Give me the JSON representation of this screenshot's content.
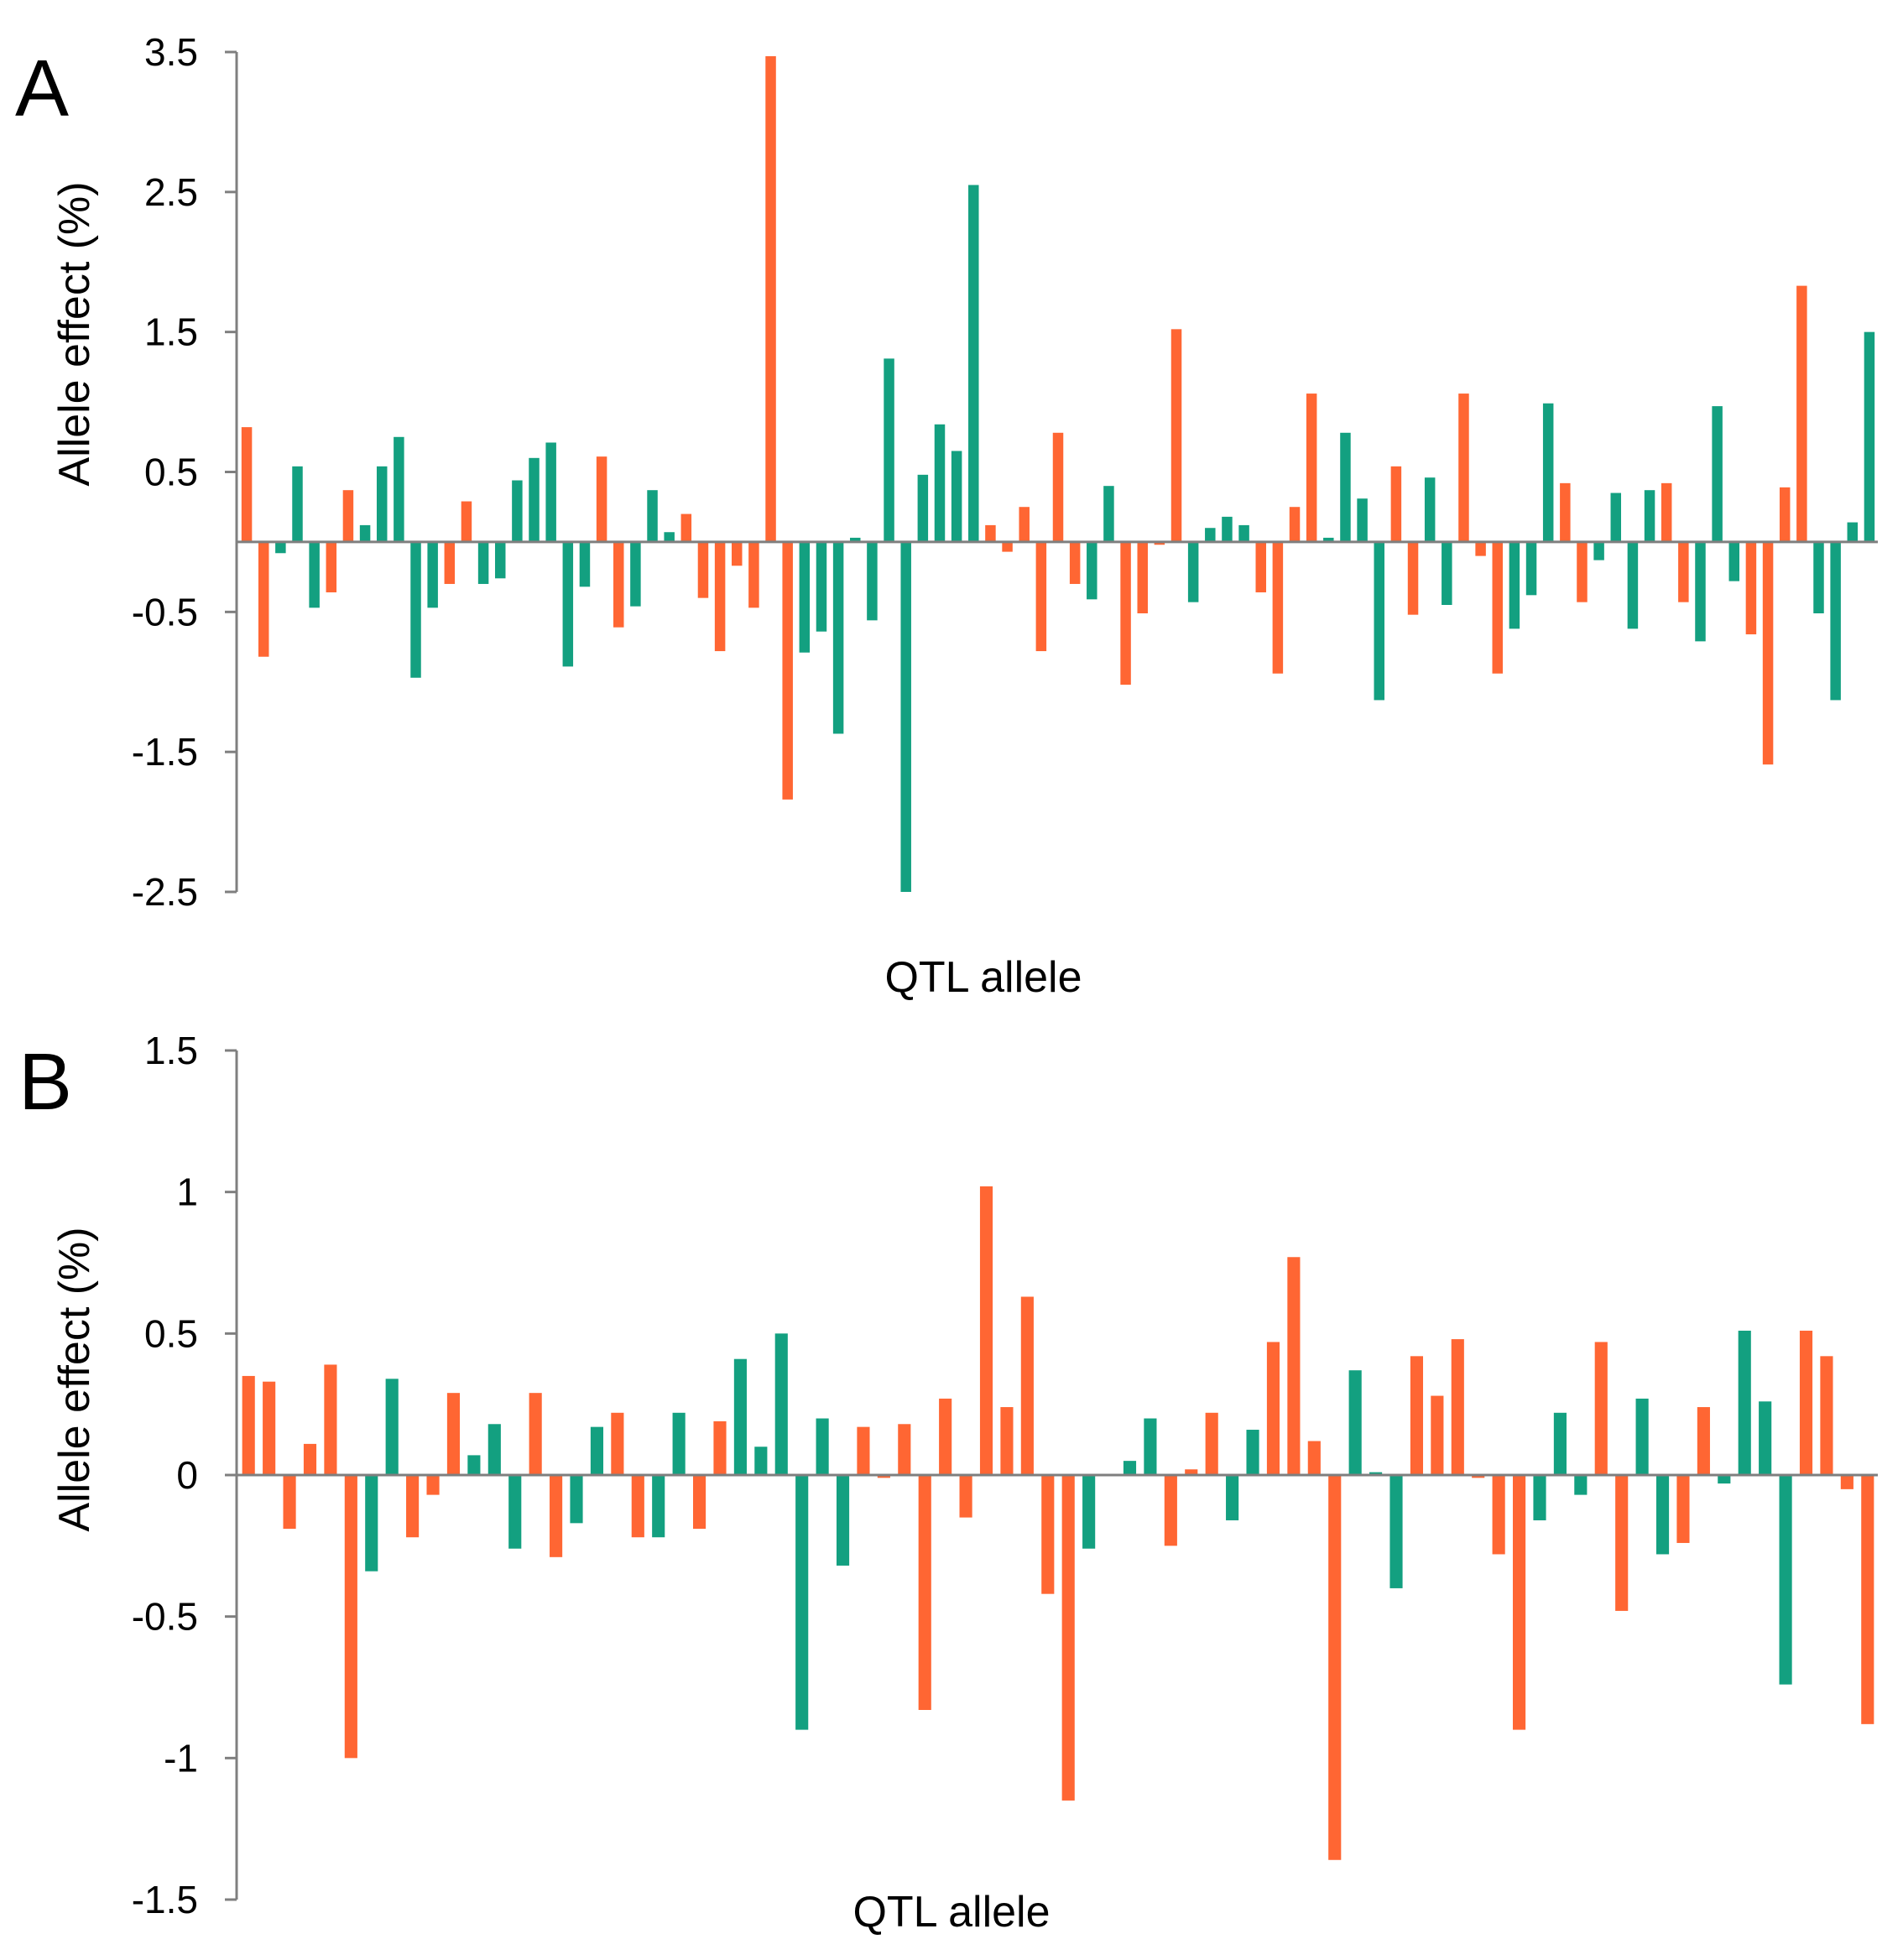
{
  "colors": {
    "orange": "#ff6633",
    "teal": "#13a080",
    "axis": "#7f7f7f"
  },
  "chart_data": [
    {
      "type": "bar",
      "panel": "A",
      "xlabel": "QTL allele",
      "ylabel": "Allele effect (%)",
      "ylim": [
        -2.5,
        3.5
      ],
      "yticks": [
        "3.5",
        "2.5",
        "1.5",
        "0.5",
        "-0.5",
        "-1.5",
        "-2.5"
      ],
      "ytick_values": [
        3.5,
        2.5,
        1.5,
        0.5,
        -0.5,
        -1.5,
        -2.5
      ],
      "grid": false,
      "values": [
        0.82,
        -0.82,
        -0.08,
        0.54,
        -0.47,
        -0.36,
        0.37,
        0.12,
        0.54,
        0.75,
        -0.97,
        -0.47,
        -0.3,
        0.29,
        -0.3,
        -0.26,
        0.44,
        0.6,
        0.71,
        -0.89,
        -0.32,
        0.61,
        -0.61,
        -0.46,
        0.37,
        0.07,
        0.2,
        -0.4,
        -0.78,
        -0.17,
        -0.47,
        3.47,
        -1.84,
        -0.79,
        -0.64,
        -1.37,
        0.03,
        -0.56,
        1.31,
        -2.5,
        0.48,
        0.84,
        0.65,
        2.55,
        0.12,
        -0.07,
        0.25,
        -0.78,
        0.78,
        -0.3,
        -0.41,
        0.4,
        -1.02,
        -0.51,
        -0.02,
        1.52,
        -0.43,
        0.1,
        0.18,
        0.12,
        -0.36,
        -0.94,
        0.25,
        1.06,
        0.03,
        0.78,
        0.31,
        -1.13,
        0.54,
        -0.52,
        0.46,
        -0.45,
        1.06,
        -0.1,
        -0.94,
        -0.62,
        -0.38,
        0.99,
        0.42,
        -0.43,
        -0.13,
        0.35,
        -0.62,
        0.37,
        0.42,
        -0.43,
        -0.71,
        0.97,
        -0.28,
        -0.66,
        -1.59,
        0.39,
        1.83,
        -0.51,
        -1.13,
        0.14,
        1.5
      ],
      "colors": [
        "o",
        "o",
        "t",
        "t",
        "t",
        "o",
        "o",
        "t",
        "t",
        "t",
        "t",
        "t",
        "o",
        "o",
        "t",
        "t",
        "t",
        "t",
        "t",
        "t",
        "t",
        "o",
        "o",
        "t",
        "t",
        "t",
        "o",
        "o",
        "o",
        "o",
        "o",
        "o",
        "o",
        "t",
        "t",
        "t",
        "t",
        "t",
        "t",
        "t",
        "t",
        "t",
        "t",
        "t",
        "o",
        "o",
        "o",
        "o",
        "o",
        "o",
        "t",
        "t",
        "o",
        "o",
        "o",
        "o",
        "t",
        "t",
        "t",
        "t",
        "o",
        "o",
        "o",
        "o",
        "t",
        "t",
        "t",
        "t",
        "o",
        "o",
        "t",
        "t",
        "o",
        "o",
        "o",
        "t",
        "t",
        "t",
        "o",
        "o",
        "t",
        "t",
        "t",
        "t",
        "o",
        "o",
        "t",
        "t",
        "t",
        "o",
        "o",
        "o",
        "o",
        "t",
        "t",
        "t",
        "t"
      ]
    },
    {
      "type": "bar",
      "panel": "B",
      "xlabel": "QTL allele",
      "ylabel": "Allele effect (%)",
      "ylim": [
        -1.5,
        1.5
      ],
      "yticks": [
        "1.5",
        "1",
        "0.5",
        "0",
        "-0.5",
        "-1",
        "-1.5"
      ],
      "ytick_values": [
        1.5,
        1,
        0.5,
        0,
        -0.5,
        -1,
        -1.5
      ],
      "grid": false,
      "values": [
        0.35,
        0.33,
        -0.19,
        0.11,
        0.39,
        -1.0,
        -0.34,
        0.34,
        -0.22,
        -0.07,
        0.29,
        0.07,
        0.18,
        -0.26,
        0.29,
        -0.29,
        -0.17,
        0.17,
        0.22,
        -0.22,
        -0.22,
        0.22,
        -0.19,
        0.19,
        0.41,
        0.1,
        0.5,
        -0.9,
        0.2,
        -0.32,
        0.17,
        -0.01,
        0.18,
        -0.83,
        0.27,
        -0.15,
        1.02,
        0.24,
        0.63,
        -0.42,
        -1.15,
        -0.26,
        0.0,
        0.05,
        0.2,
        -0.25,
        0.02,
        0.22,
        -0.16,
        0.16,
        0.47,
        0.77,
        0.12,
        -1.36,
        0.37,
        0.01,
        -0.4,
        0.42,
        0.28,
        0.48,
        -0.01,
        -0.28,
        -0.9,
        -0.16,
        0.22,
        -0.07,
        0.47,
        -0.48,
        0.27,
        -0.28,
        -0.24,
        0.24,
        -0.03,
        0.51,
        0.26,
        -0.74,
        0.51,
        0.42,
        -0.05,
        -0.88
      ],
      "colors": [
        "o",
        "o",
        "o",
        "o",
        "o",
        "o",
        "t",
        "t",
        "o",
        "o",
        "o",
        "t",
        "t",
        "t",
        "o",
        "o",
        "t",
        "t",
        "o",
        "o",
        "t",
        "t",
        "o",
        "o",
        "t",
        "t",
        "t",
        "t",
        "t",
        "t",
        "o",
        "o",
        "o",
        "o",
        "o",
        "o",
        "o",
        "o",
        "o",
        "o",
        "o",
        "t",
        "t",
        "t",
        "t",
        "o",
        "o",
        "o",
        "t",
        "t",
        "o",
        "o",
        "o",
        "o",
        "t",
        "t",
        "t",
        "o",
        "o",
        "o",
        "o",
        "o",
        "o",
        "t",
        "t",
        "t",
        "o",
        "o",
        "t",
        "t",
        "o",
        "o",
        "t",
        "t",
        "t",
        "t",
        "o",
        "o",
        "o",
        "o"
      ]
    }
  ]
}
